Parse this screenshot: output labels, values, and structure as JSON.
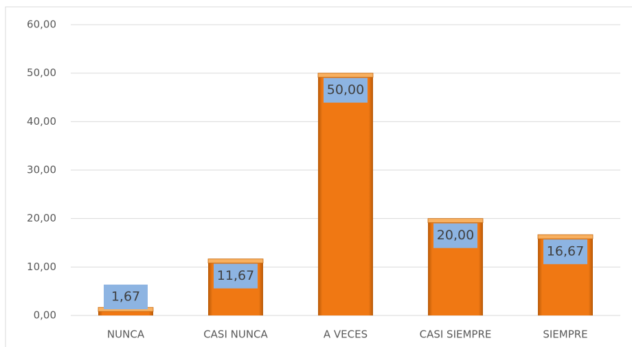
{
  "chart_data": {
    "type": "bar",
    "categories": [
      "NUNCA",
      "CASI NUNCA",
      "A VECES",
      "CASI SIEMPRE",
      "SIEMPRE"
    ],
    "values": [
      1.67,
      11.67,
      50,
      20,
      16.67
    ],
    "value_labels": [
      "1,67",
      "11,67",
      "50,00",
      "20,00",
      "16,67"
    ],
    "color": "#f07813",
    "label_box_color": "#8db4e2",
    "ylim": [
      0,
      60
    ],
    "yticks": [
      {
        "value": 0,
        "label": "0,00"
      },
      {
        "value": 10,
        "label": "10,00"
      },
      {
        "value": 20,
        "label": "20,00"
      },
      {
        "value": 30,
        "label": "30,00"
      },
      {
        "value": 40,
        "label": "40,00"
      },
      {
        "value": 50,
        "label": "50,00"
      },
      {
        "value": 60,
        "label": "60,00"
      }
    ],
    "grid": true
  }
}
